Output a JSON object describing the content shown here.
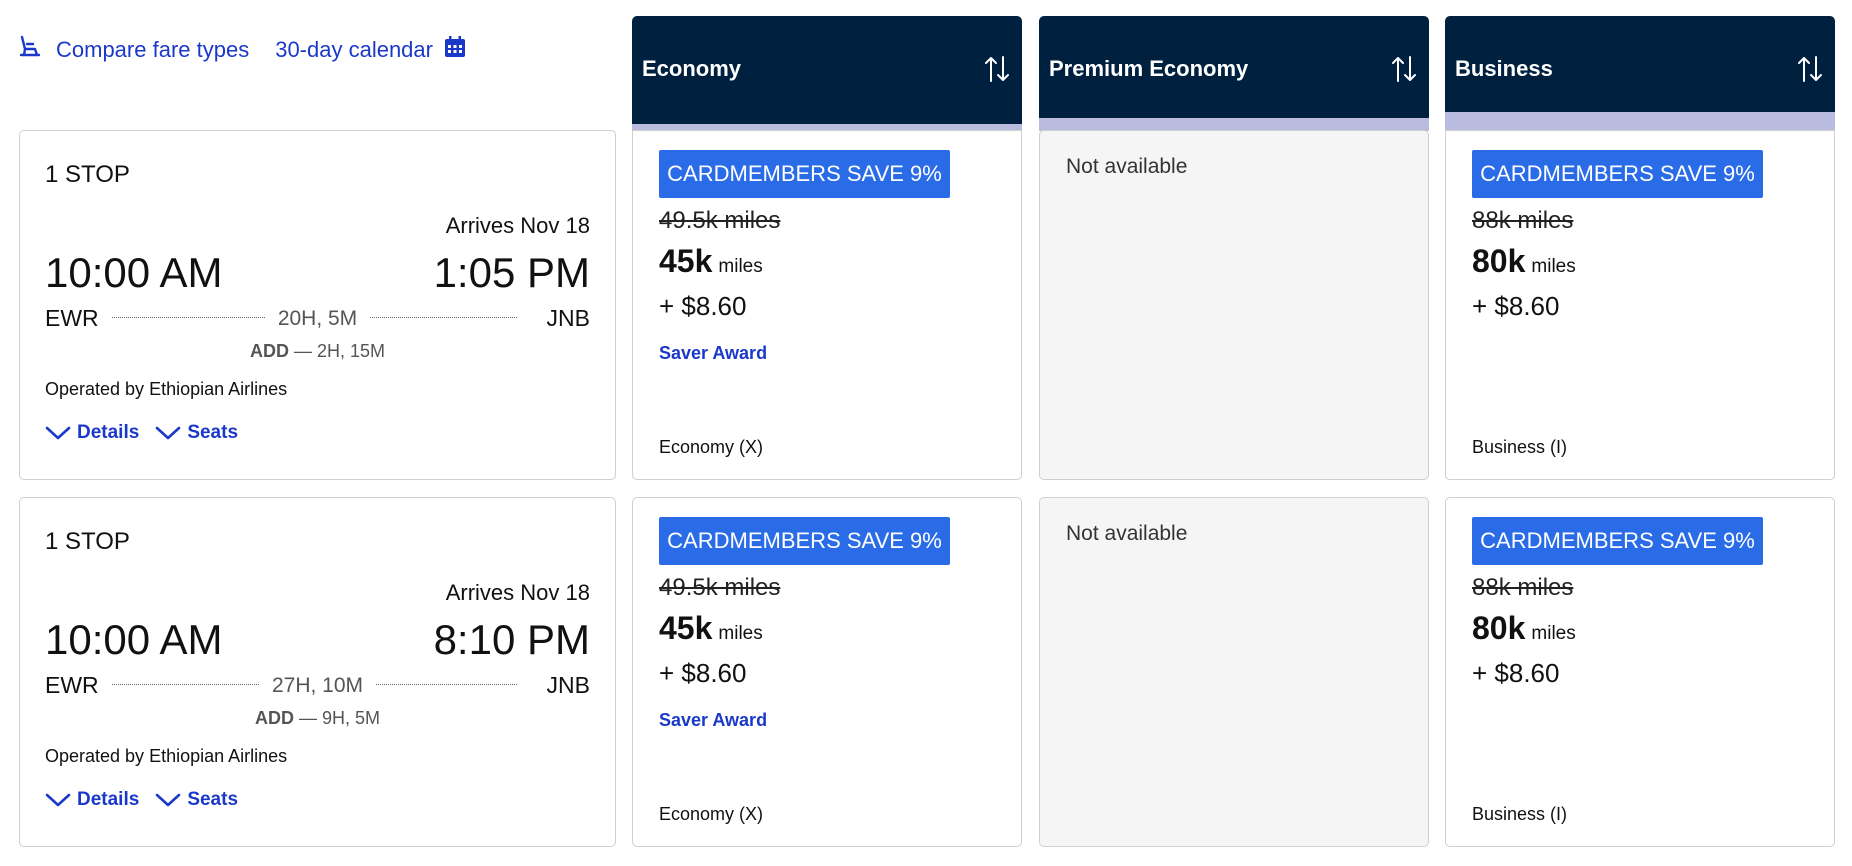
{
  "toolbar": {
    "compare_label": "Compare fare types",
    "calendar_label": "30-day calendar"
  },
  "columns": [
    {
      "name": "Economy"
    },
    {
      "name": "Premium Economy"
    },
    {
      "name": "Business"
    }
  ],
  "flights": [
    {
      "stops": "1 STOP",
      "arrives": "Arrives Nov 18",
      "depart_time": "10:00 AM",
      "arrive_time": "1:05 PM",
      "origin": "EWR",
      "destination": "JNB",
      "duration": "20H, 5M",
      "layover_code": "ADD",
      "layover_time": "— 2H, 15M",
      "operated_by": "Operated by Ethiopian Airlines",
      "details_label": "Details",
      "seats_label": "Seats",
      "economy": {
        "badge": "CARDMEMBERS SAVE 9%",
        "old_miles": "49.5k miles",
        "miles": "45k",
        "miles_unit": "miles",
        "tax": "+ $8.60",
        "award": "Saver Award",
        "cabin": "Economy (X)"
      },
      "premium": {
        "status": "Not available"
      },
      "business": {
        "badge": "CARDMEMBERS SAVE 9%",
        "old_miles": "88k miles",
        "miles": "80k",
        "miles_unit": "miles",
        "tax": "+ $8.60",
        "cabin": "Business (I)"
      }
    },
    {
      "stops": "1 STOP",
      "arrives": "Arrives Nov 18",
      "depart_time": "10:00 AM",
      "arrive_time": "8:10 PM",
      "origin": "EWR",
      "destination": "JNB",
      "duration": "27H, 10M",
      "layover_code": "ADD",
      "layover_time": "— 9H, 5M",
      "operated_by": "Operated by Ethiopian Airlines",
      "details_label": "Details",
      "seats_label": "Seats",
      "economy": {
        "badge": "CARDMEMBERS SAVE 9%",
        "old_miles": "49.5k miles",
        "miles": "45k",
        "miles_unit": "miles",
        "tax": "+ $8.60",
        "award": "Saver Award",
        "cabin": "Economy (X)"
      },
      "premium": {
        "status": "Not available"
      },
      "business": {
        "badge": "CARDMEMBERS SAVE 9%",
        "old_miles": "88k miles",
        "miles": "80k",
        "miles_unit": "miles",
        "tax": "+ $8.60",
        "cabin": "Business (I)"
      }
    }
  ],
  "colors": {
    "header_bg": "#00203f",
    "accent_stripe": "#b9bcdf",
    "link": "#1b39c9",
    "badge_bg": "#2a6ce8",
    "unavailable_bg": "#f5f5f5"
  },
  "icons": {
    "compare": "seat-icon",
    "calendar": "calendar-icon",
    "sort": "sort-arrows-icon",
    "expand": "chevron-down-icon"
  }
}
